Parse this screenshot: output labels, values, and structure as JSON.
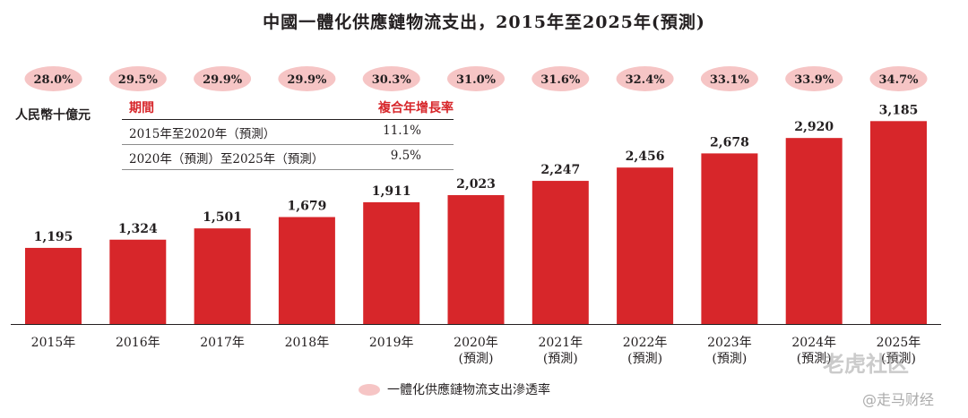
{
  "chart_data": {
    "type": "bar",
    "title": "中國一體化供應鏈物流支出，2015年至2025年(預測)",
    "unit_label": "人民幣十億元",
    "categories": [
      [
        "2015年"
      ],
      [
        "2016年"
      ],
      [
        "2017年"
      ],
      [
        "2018年"
      ],
      [
        "2019年"
      ],
      [
        "2020年",
        "(預測)"
      ],
      [
        "2021年",
        "(預測)"
      ],
      [
        "2022年",
        "(預測)"
      ],
      [
        "2023年",
        "(預測)"
      ],
      [
        "2024年",
        "(預測)"
      ],
      [
        "2025年",
        "(預測)"
      ]
    ],
    "values": [
      1195,
      1324,
      1501,
      1679,
      1911,
      2023,
      2247,
      2456,
      2678,
      2920,
      3185
    ],
    "value_labels": [
      "1,195",
      "1,324",
      "1,501",
      "1,679",
      "1,911",
      "2,023",
      "2,247",
      "2,456",
      "2,678",
      "2,920",
      "3,185"
    ],
    "penetration_rate": [
      "28.0%",
      "29.5%",
      "29.9%",
      "29.9%",
      "30.3%",
      "31.0%",
      "31.6%",
      "32.4%",
      "33.1%",
      "33.9%",
      "34.7%"
    ],
    "ylim": [
      0,
      3400
    ],
    "grid": false,
    "bar_color": "#d7262a",
    "pill_color": "#f6c5c5",
    "legend": {
      "label": "一體化供應鏈物流支出滲透率",
      "placement": "bottom-center"
    },
    "cagr_table": {
      "headers": [
        "期間",
        "複合年增長率"
      ],
      "rows": [
        [
          "2015年至2020年（預測）",
          "11.1%"
        ],
        [
          "2020年（預測）至2025年（預測）",
          "9.5%"
        ]
      ]
    }
  },
  "watermarks": [
    "老虎社区",
    "@走马财经"
  ]
}
